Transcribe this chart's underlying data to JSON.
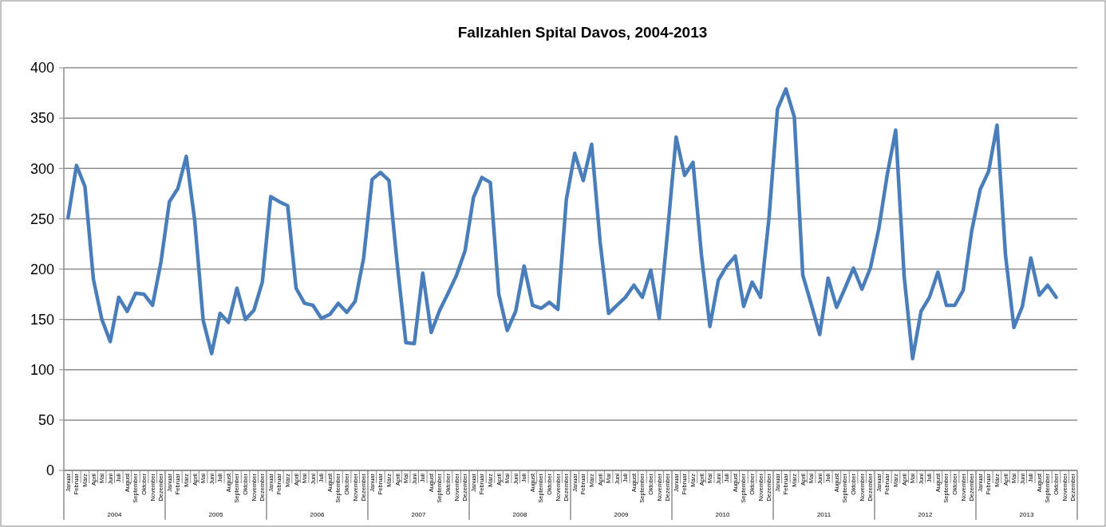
{
  "chart_data": {
    "type": "line",
    "title": "Fallzahlen Spital Davos, 2004-2013",
    "categories": [
      "Januar",
      "Februar",
      "März",
      "April",
      "Mai",
      "Juni",
      "Juli",
      "August",
      "September",
      "Oktober",
      "November",
      "Dezember",
      "Januar",
      "Februar",
      "März",
      "April",
      "Mai",
      "Juni",
      "Juli",
      "August",
      "September",
      "Oktober",
      "November",
      "Dezember",
      "Januar",
      "Februar",
      "März",
      "April",
      "Mai",
      "Juni",
      "Juli",
      "August",
      "September",
      "Oktober",
      "November",
      "Dezember",
      "Januar",
      "Februar",
      "März",
      "April",
      "Mai",
      "Juni",
      "Juli",
      "August",
      "September",
      "Oktober",
      "November",
      "Dezember",
      "Januar",
      "Februar",
      "März",
      "April",
      "Mai",
      "Juni",
      "Juli",
      "August",
      "September",
      "Oktober",
      "November",
      "Dezember",
      "Januar",
      "Februar",
      "März",
      "April",
      "Mai",
      "Juni",
      "Juli",
      "August",
      "September",
      "Oktober",
      "November",
      "Dezember",
      "Januar",
      "Februar",
      "März",
      "April",
      "Mai",
      "Juni",
      "Juli",
      "August",
      "September",
      "Oktober",
      "November",
      "Dezember",
      "Januar",
      "Februar",
      "März",
      "April",
      "Mai",
      "Juni",
      "Juli",
      "August",
      "September",
      "Oktober",
      "November",
      "Dezember",
      "Januar",
      "Februar",
      "März",
      "April",
      "Mai",
      "Juni",
      "Juli",
      "August",
      "September",
      "Oktober",
      "November",
      "Dezember",
      "Januar",
      "Februar",
      "März",
      "April",
      "Mai",
      "Juni",
      "Juli",
      "August",
      "September",
      "Oktober",
      "November",
      "Dezember"
    ],
    "annotations": [
      "2004",
      "2005",
      "2006",
      "2007",
      "2008",
      "2009",
      "2010",
      "2011",
      "2012",
      "2013"
    ],
    "series": [
      {
        "color": "#4a7ebb",
        "values": [
          251,
          303,
          282,
          190,
          150,
          128,
          172,
          158,
          176,
          175,
          164,
          207,
          267,
          280,
          312,
          248,
          149,
          116,
          156,
          147,
          181,
          150,
          159,
          187,
          272,
          267,
          263,
          181,
          166,
          164,
          151,
          155,
          166,
          157,
          168,
          211,
          289,
          296,
          288,
          203,
          127,
          126,
          196,
          137,
          159,
          176,
          194,
          218,
          271,
          291,
          286,
          175,
          139,
          158,
          203,
          164,
          161,
          167,
          160,
          269,
          315,
          288,
          324,
          227,
          156,
          164,
          172,
          184,
          172,
          199,
          151,
          238,
          331,
          293,
          306,
          214,
          143,
          189,
          203,
          213,
          163,
          187,
          172,
          251,
          359,
          379,
          351,
          194,
          165,
          135,
          191,
          162,
          181,
          201,
          180,
          201,
          240,
          294,
          338,
          193,
          111,
          158,
          172,
          197,
          164,
          164,
          179,
          238,
          279,
          297,
          343,
          214,
          142,
          163,
          211,
          174,
          184,
          172,
          null,
          null
        ]
      }
    ],
    "ylim": [
      0,
      400
    ],
    "yticks": [
      0,
      50,
      100,
      150,
      200,
      250,
      300,
      350,
      400
    ],
    "grid": "y",
    "marker": "none",
    "line_style": "solid"
  }
}
